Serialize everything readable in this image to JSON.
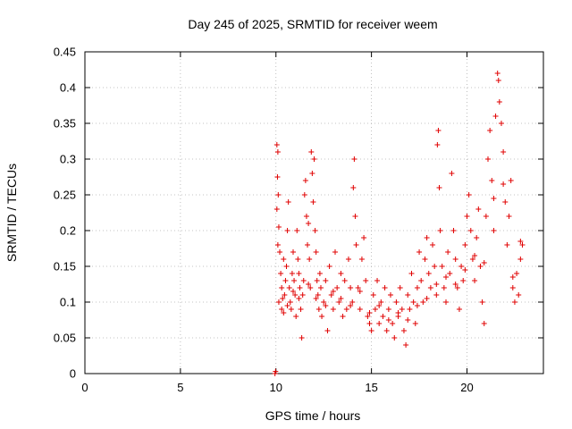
{
  "chart_data": {
    "type": "scatter",
    "title": "Day 245 of 2025, SRMTID for receiver weem",
    "xlabel": "GPS time / hours",
    "ylabel": "SRMTID / TECUs",
    "xlim": [
      0,
      24
    ],
    "ylim": [
      0,
      0.45
    ],
    "xticks": [
      0,
      5,
      10,
      15,
      20
    ],
    "yticks": [
      0,
      0.05,
      0.1,
      0.15,
      0.2,
      0.25,
      0.3,
      0.35,
      0.4,
      0.45
    ],
    "grid": true,
    "marker": "+",
    "color": "#e00000",
    "series": [
      {
        "name": "SRMTID",
        "marker": "+",
        "points": [
          [
            9.95,
            0.0
          ],
          [
            9.98,
            0.003
          ],
          [
            10.05,
            0.32
          ],
          [
            10.1,
            0.31
          ],
          [
            10.08,
            0.275
          ],
          [
            10.12,
            0.25
          ],
          [
            10.05,
            0.23
          ],
          [
            10.15,
            0.205
          ],
          [
            10.1,
            0.18
          ],
          [
            10.2,
            0.17
          ],
          [
            10.25,
            0.14
          ],
          [
            10.3,
            0.12
          ],
          [
            10.15,
            0.1
          ],
          [
            10.3,
            0.09
          ],
          [
            10.4,
            0.085
          ],
          [
            10.45,
            0.11
          ],
          [
            10.5,
            0.13
          ],
          [
            10.55,
            0.15
          ],
          [
            10.4,
            0.16
          ],
          [
            10.6,
            0.2
          ],
          [
            10.65,
            0.24
          ],
          [
            10.7,
            0.12
          ],
          [
            10.75,
            0.1
          ],
          [
            10.8,
            0.09
          ],
          [
            10.85,
            0.14
          ],
          [
            10.9,
            0.17
          ],
          [
            10.95,
            0.13
          ],
          [
            11.0,
            0.11
          ],
          [
            11.05,
            0.08
          ],
          [
            11.1,
            0.2
          ],
          [
            11.15,
            0.16
          ],
          [
            11.2,
            0.14
          ],
          [
            11.25,
            0.12
          ],
          [
            11.3,
            0.09
          ],
          [
            11.35,
            0.05
          ],
          [
            11.4,
            0.11
          ],
          [
            11.45,
            0.13
          ],
          [
            11.5,
            0.25
          ],
          [
            11.55,
            0.27
          ],
          [
            11.6,
            0.22
          ],
          [
            11.65,
            0.18
          ],
          [
            11.7,
            0.21
          ],
          [
            11.75,
            0.16
          ],
          [
            11.8,
            0.12
          ],
          [
            11.85,
            0.31
          ],
          [
            11.9,
            0.28
          ],
          [
            11.95,
            0.24
          ],
          [
            12.0,
            0.3
          ],
          [
            12.05,
            0.2
          ],
          [
            12.1,
            0.17
          ],
          [
            12.15,
            0.13
          ],
          [
            12.2,
            0.11
          ],
          [
            12.25,
            0.09
          ],
          [
            12.3,
            0.14
          ],
          [
            12.35,
            0.12
          ],
          [
            12.4,
            0.08
          ],
          [
            12.5,
            0.1
          ],
          [
            12.6,
            0.13
          ],
          [
            12.7,
            0.06
          ],
          [
            12.8,
            0.15
          ],
          [
            12.9,
            0.11
          ],
          [
            13.0,
            0.09
          ],
          [
            13.1,
            0.17
          ],
          [
            13.2,
            0.12
          ],
          [
            13.3,
            0.1
          ],
          [
            13.4,
            0.14
          ],
          [
            13.5,
            0.08
          ],
          [
            13.6,
            0.13
          ],
          [
            13.7,
            0.09
          ],
          [
            13.8,
            0.16
          ],
          [
            13.9,
            0.12
          ],
          [
            14.0,
            0.1
          ],
          [
            14.05,
            0.26
          ],
          [
            14.1,
            0.3
          ],
          [
            14.15,
            0.22
          ],
          [
            14.2,
            0.18
          ],
          [
            14.3,
            0.12
          ],
          [
            14.4,
            0.09
          ],
          [
            14.5,
            0.16
          ],
          [
            14.6,
            0.19
          ],
          [
            14.7,
            0.13
          ],
          [
            14.8,
            0.08
          ],
          [
            14.9,
            0.07
          ],
          [
            15.0,
            0.06
          ],
          [
            15.1,
            0.11
          ],
          [
            15.2,
            0.09
          ],
          [
            15.3,
            0.13
          ],
          [
            15.4,
            0.07
          ],
          [
            15.5,
            0.1
          ],
          [
            15.6,
            0.08
          ],
          [
            15.7,
            0.12
          ],
          [
            15.8,
            0.06
          ],
          [
            15.9,
            0.09
          ],
          [
            16.0,
            0.11
          ],
          [
            16.1,
            0.07
          ],
          [
            16.2,
            0.05
          ],
          [
            16.3,
            0.1
          ],
          [
            16.4,
            0.08
          ],
          [
            16.5,
            0.12
          ],
          [
            16.6,
            0.09
          ],
          [
            16.7,
            0.06
          ],
          [
            16.8,
            0.04
          ],
          [
            16.9,
            0.11
          ],
          [
            17.0,
            0.09
          ],
          [
            17.1,
            0.14
          ],
          [
            17.2,
            0.1
          ],
          [
            17.3,
            0.07
          ],
          [
            17.4,
            0.12
          ],
          [
            17.5,
            0.17
          ],
          [
            17.6,
            0.13
          ],
          [
            17.7,
            0.1
          ],
          [
            17.8,
            0.16
          ],
          [
            17.9,
            0.19
          ],
          [
            18.0,
            0.14
          ],
          [
            18.1,
            0.12
          ],
          [
            18.2,
            0.18
          ],
          [
            18.3,
            0.15
          ],
          [
            18.4,
            0.11
          ],
          [
            18.45,
            0.32
          ],
          [
            18.5,
            0.34
          ],
          [
            18.55,
            0.26
          ],
          [
            18.6,
            0.2
          ],
          [
            18.7,
            0.15
          ],
          [
            18.8,
            0.12
          ],
          [
            18.9,
            0.1
          ],
          [
            19.0,
            0.17
          ],
          [
            19.1,
            0.14
          ],
          [
            19.2,
            0.28
          ],
          [
            19.3,
            0.2
          ],
          [
            19.4,
            0.16
          ],
          [
            19.5,
            0.12
          ],
          [
            19.6,
            0.09
          ],
          [
            19.7,
            0.15
          ],
          [
            19.8,
            0.13
          ],
          [
            19.9,
            0.18
          ],
          [
            20.0,
            0.22
          ],
          [
            20.1,
            0.25
          ],
          [
            20.2,
            0.2
          ],
          [
            20.3,
            0.16
          ],
          [
            20.4,
            0.13
          ],
          [
            20.5,
            0.19
          ],
          [
            20.6,
            0.23
          ],
          [
            20.7,
            0.15
          ],
          [
            20.8,
            0.1
          ],
          [
            20.9,
            0.07
          ],
          [
            21.0,
            0.22
          ],
          [
            21.1,
            0.3
          ],
          [
            21.2,
            0.34
          ],
          [
            21.3,
            0.27
          ],
          [
            21.4,
            0.2
          ],
          [
            21.5,
            0.36
          ],
          [
            21.6,
            0.42
          ],
          [
            21.65,
            0.41
          ],
          [
            21.7,
            0.38
          ],
          [
            21.8,
            0.35
          ],
          [
            21.9,
            0.31
          ],
          [
            22.0,
            0.24
          ],
          [
            22.1,
            0.18
          ],
          [
            22.2,
            0.22
          ],
          [
            22.3,
            0.27
          ],
          [
            22.4,
            0.12
          ],
          [
            22.5,
            0.1
          ],
          [
            22.6,
            0.14
          ],
          [
            22.7,
            0.11
          ],
          [
            22.8,
            0.16
          ],
          [
            22.9,
            0.18
          ],
          [
            10.35,
            0.105
          ],
          [
            10.6,
            0.095
          ],
          [
            10.9,
            0.115
          ],
          [
            11.2,
            0.105
          ],
          [
            11.7,
            0.125
          ],
          [
            12.1,
            0.105
          ],
          [
            12.6,
            0.095
          ],
          [
            13.0,
            0.115
          ],
          [
            13.4,
            0.105
          ],
          [
            13.9,
            0.095
          ],
          [
            14.4,
            0.115
          ],
          [
            14.9,
            0.085
          ],
          [
            15.4,
            0.095
          ],
          [
            15.9,
            0.075
          ],
          [
            16.4,
            0.085
          ],
          [
            16.9,
            0.075
          ],
          [
            17.4,
            0.095
          ],
          [
            17.9,
            0.105
          ],
          [
            18.4,
            0.125
          ],
          [
            18.9,
            0.135
          ],
          [
            19.4,
            0.125
          ],
          [
            19.9,
            0.145
          ],
          [
            20.4,
            0.165
          ],
          [
            20.9,
            0.155
          ],
          [
            21.4,
            0.245
          ],
          [
            21.9,
            0.265
          ],
          [
            22.4,
            0.135
          ],
          [
            22.8,
            0.185
          ]
        ]
      }
    ]
  }
}
